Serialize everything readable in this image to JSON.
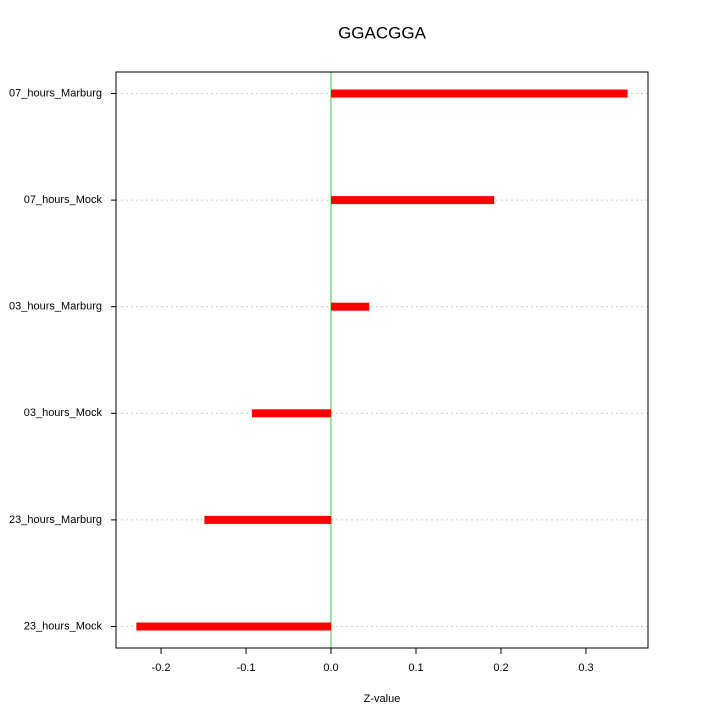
{
  "chart_data": {
    "type": "hbar",
    "title": "GGACGGA",
    "xlabel": "Z-value",
    "categories": [
      "07_hours_Marburg",
      "07_hours_Mock",
      "03_hours_Marburg",
      "03_hours_Mock",
      "23_hours_Marburg",
      "23_hours_Mock"
    ],
    "values": [
      0.349,
      0.192,
      0.045,
      -0.093,
      -0.149,
      -0.229
    ],
    "color": "#ff0000",
    "zero_line_color": "#33cc33",
    "xlim": [
      -0.253,
      0.373
    ],
    "xticks": [
      -0.2,
      -0.1,
      {
        "value": 0,
        "label": "0.0"
      },
      0.1,
      0.2,
      0.3
    ],
    "grid": true
  }
}
